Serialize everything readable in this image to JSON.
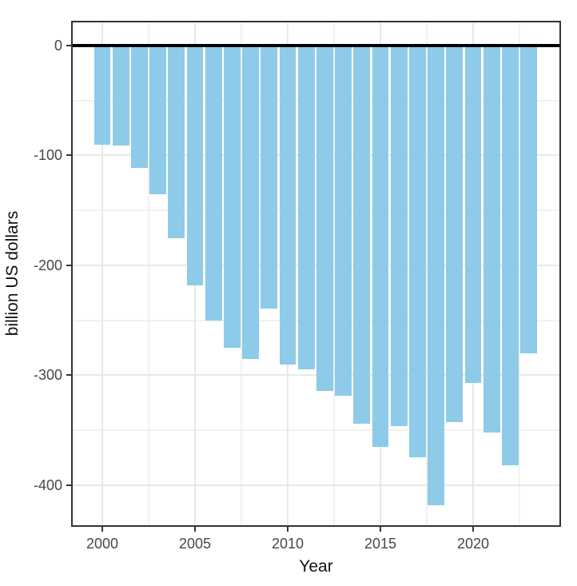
{
  "chart_data": {
    "type": "bar",
    "xlabel": "Year",
    "ylabel": "billion US dollars",
    "categories": [
      2000,
      2001,
      2002,
      2003,
      2004,
      2005,
      2006,
      2007,
      2008,
      2009,
      2010,
      2011,
      2012,
      2013,
      2014,
      2015,
      2016,
      2017,
      2018,
      2019,
      2020,
      2021,
      2022,
      2023
    ],
    "values": [
      -90,
      -91,
      -111,
      -135,
      -175,
      -218,
      -250,
      -275,
      -285,
      -239,
      -290,
      -295,
      -314,
      -319,
      -344,
      -365,
      -346,
      -375,
      -418,
      -343,
      -307,
      -352,
      -382,
      -280
    ],
    "x_ticks": [
      2000,
      2005,
      2010,
      2015,
      2020
    ],
    "x_minor_gridlines": [
      2002.5,
      2007.5,
      2012.5,
      2017.5,
      2022.5
    ],
    "y_ticks": [
      0,
      -100,
      -200,
      -300,
      -400
    ],
    "y_minor_gridlines": [
      -50,
      -150,
      -250,
      -350
    ],
    "xlim": [
      1998.32,
      2024.74
    ],
    "ylim": [
      -438,
      22.6
    ],
    "bar_width_years": 0.9,
    "bar_color": "#8dcbe8",
    "zero_line": true,
    "grid": "on",
    "legend": "none"
  }
}
